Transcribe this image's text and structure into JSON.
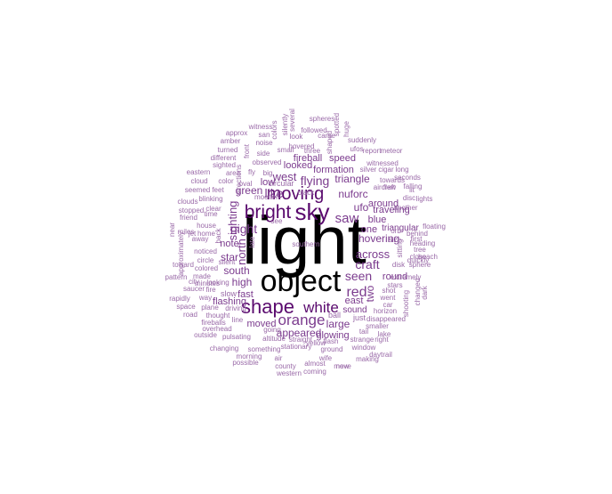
{
  "colors": {
    "black": "#000000",
    "dark": "#5a0a6e",
    "mid": "#7b3b8e",
    "light": "#9a6aa8"
  },
  "words": [
    {
      "text": "light",
      "c": "black"
    },
    {
      "text": "object",
      "c": "black"
    },
    {
      "text": "sky",
      "c": "dark"
    },
    {
      "text": "bright",
      "c": "dark"
    },
    {
      "text": "moving",
      "c": "dark"
    },
    {
      "text": "shape",
      "c": "dark"
    },
    {
      "text": "white",
      "c": "dark"
    },
    {
      "text": "orange",
      "c": "mid"
    },
    {
      "text": "red",
      "c": "mid"
    },
    {
      "text": "seen",
      "c": "mid"
    },
    {
      "text": "saw",
      "c": "mid"
    },
    {
      "text": "flying",
      "c": "mid"
    },
    {
      "text": "like",
      "c": "mid"
    },
    {
      "text": "craft",
      "c": "mid"
    },
    {
      "text": "across",
      "c": "mid"
    },
    {
      "text": "west",
      "c": "mid"
    },
    {
      "text": "night",
      "c": "mid"
    },
    {
      "text": "nuforc",
      "c": "mid"
    },
    {
      "text": "triangle",
      "c": "mid"
    },
    {
      "text": "ufo",
      "c": "mid"
    },
    {
      "text": "around",
      "c": "mid"
    },
    {
      "text": "hovering",
      "c": "mid"
    },
    {
      "text": "blue",
      "c": "mid"
    },
    {
      "text": "one",
      "c": "mid"
    },
    {
      "text": "green",
      "c": "mid"
    },
    {
      "text": "sighting",
      "c": "mid"
    },
    {
      "text": "north",
      "c": "mid"
    },
    {
      "text": "star",
      "c": "mid"
    },
    {
      "text": "south",
      "c": "mid"
    },
    {
      "text": "high",
      "c": "mid"
    },
    {
      "text": "fast",
      "c": "mid"
    },
    {
      "text": "flashing",
      "c": "mid"
    },
    {
      "text": "appeared",
      "c": "mid"
    },
    {
      "text": "large",
      "c": "mid"
    },
    {
      "text": "east",
      "c": "mid"
    },
    {
      "text": "two",
      "c": "mid"
    },
    {
      "text": "glowing",
      "c": "mid"
    },
    {
      "text": "moved",
      "c": "mid"
    },
    {
      "text": "formation",
      "c": "mid"
    },
    {
      "text": "looked",
      "c": "mid"
    },
    {
      "text": "speed",
      "c": "mid"
    },
    {
      "text": "fireball",
      "c": "mid"
    },
    {
      "text": "note",
      "c": "mid"
    },
    {
      "text": "traveling",
      "c": "mid"
    },
    {
      "text": "triangular",
      "c": "mid"
    },
    {
      "text": "round",
      "c": "mid"
    },
    {
      "text": "sound",
      "c": "mid"
    },
    {
      "text": "low",
      "c": "mid"
    },
    {
      "text": "circular",
      "c": "light"
    },
    {
      "text": "slow",
      "c": "light"
    },
    {
      "text": "ball",
      "c": "light"
    },
    {
      "text": "just",
      "c": "light"
    },
    {
      "text": "stars",
      "c": "light"
    },
    {
      "text": "flew",
      "c": "light"
    },
    {
      "text": "aircraft",
      "c": "light"
    },
    {
      "text": "disc",
      "c": "light"
    },
    {
      "text": "falling",
      "c": "light"
    },
    {
      "text": "towards",
      "c": "light"
    },
    {
      "text": "witnessed",
      "c": "light"
    },
    {
      "text": "silver",
      "c": "light"
    },
    {
      "text": "cigar",
      "c": "light"
    },
    {
      "text": "long",
      "c": "light"
    },
    {
      "text": "report",
      "c": "light"
    },
    {
      "text": "meteor",
      "c": "light"
    },
    {
      "text": "ufos",
      "c": "light"
    },
    {
      "text": "suddenly",
      "c": "light"
    },
    {
      "text": "spheres",
      "c": "light"
    },
    {
      "text": "followed",
      "c": "light"
    },
    {
      "text": "came",
      "c": "light"
    },
    {
      "text": "look",
      "c": "light"
    },
    {
      "text": "hovered",
      "c": "light"
    },
    {
      "text": "three",
      "c": "light"
    },
    {
      "text": "small",
      "c": "light"
    },
    {
      "text": "side",
      "c": "light"
    },
    {
      "text": "noise",
      "c": "light"
    },
    {
      "text": "san",
      "c": "light"
    },
    {
      "text": "approx",
      "c": "light"
    },
    {
      "text": "witness",
      "c": "light"
    },
    {
      "text": "amber",
      "c": "light"
    },
    {
      "text": "turned",
      "c": "light"
    },
    {
      "text": "different",
      "c": "light"
    },
    {
      "text": "sighted",
      "c": "light"
    },
    {
      "text": "observed",
      "c": "light"
    },
    {
      "text": "area",
      "c": "light"
    },
    {
      "text": "big",
      "c": "light"
    },
    {
      "text": "eastern",
      "c": "light"
    },
    {
      "text": "cloud",
      "c": "light"
    },
    {
      "text": "color",
      "c": "light"
    },
    {
      "text": "oval",
      "c": "light"
    },
    {
      "text": "seemed",
      "c": "light"
    },
    {
      "text": "feet",
      "c": "light"
    },
    {
      "text": "clouds",
      "c": "light"
    },
    {
      "text": "stopped",
      "c": "light"
    },
    {
      "text": "friend",
      "c": "light"
    },
    {
      "text": "blinking",
      "c": "light"
    },
    {
      "text": "clear",
      "c": "light"
    },
    {
      "text": "time",
      "c": "light"
    },
    {
      "text": "house",
      "c": "light"
    },
    {
      "text": "home",
      "c": "light"
    },
    {
      "text": "away",
      "c": "light"
    },
    {
      "text": "jet",
      "c": "light"
    },
    {
      "text": "miles",
      "c": "light"
    },
    {
      "text": "toward",
      "c": "light"
    },
    {
      "text": "circle",
      "c": "light"
    },
    {
      "text": "silent",
      "c": "light"
    },
    {
      "text": "noticed",
      "c": "light"
    },
    {
      "text": "pattern",
      "c": "light"
    },
    {
      "text": "city",
      "c": "light"
    },
    {
      "text": "made",
      "c": "light"
    },
    {
      "text": "colored",
      "c": "light"
    },
    {
      "text": "minutes",
      "c": "light"
    },
    {
      "text": "looking",
      "c": "light"
    },
    {
      "text": "saucer",
      "c": "light"
    },
    {
      "text": "fire",
      "c": "light"
    },
    {
      "text": "rapidly",
      "c": "light"
    },
    {
      "text": "way",
      "c": "light"
    },
    {
      "text": "space",
      "c": "light"
    },
    {
      "text": "plane",
      "c": "light"
    },
    {
      "text": "driving",
      "c": "light"
    },
    {
      "text": "road",
      "c": "light"
    },
    {
      "text": "thought",
      "c": "light"
    },
    {
      "text": "fireballs",
      "c": "light"
    },
    {
      "text": "line",
      "c": "light"
    },
    {
      "text": "overhead",
      "c": "light"
    },
    {
      "text": "outside",
      "c": "light"
    },
    {
      "text": "pulsating",
      "c": "light"
    },
    {
      "text": "changing",
      "c": "light"
    },
    {
      "text": "something",
      "c": "light"
    },
    {
      "text": "altitude",
      "c": "light"
    },
    {
      "text": "going",
      "c": "light"
    },
    {
      "text": "air",
      "c": "light"
    },
    {
      "text": "possible",
      "c": "light"
    },
    {
      "text": "morning",
      "c": "light"
    },
    {
      "text": "county",
      "c": "light"
    },
    {
      "text": "western",
      "c": "light"
    },
    {
      "text": "almost",
      "c": "light"
    },
    {
      "text": "coming",
      "c": "light"
    },
    {
      "text": "wife",
      "c": "light"
    },
    {
      "text": "move",
      "c": "light"
    },
    {
      "text": "new",
      "c": "light"
    },
    {
      "text": "making",
      "c": "light"
    },
    {
      "text": "daytrail",
      "c": "light"
    },
    {
      "text": "window",
      "c": "light"
    },
    {
      "text": "ground",
      "c": "light"
    },
    {
      "text": "stationary",
      "c": "light"
    },
    {
      "text": "straight",
      "c": "light"
    },
    {
      "text": "flash",
      "c": "light"
    },
    {
      "text": "yellow",
      "c": "light"
    },
    {
      "text": "tail",
      "c": "light"
    },
    {
      "text": "strange",
      "c": "light"
    },
    {
      "text": "right",
      "c": "light"
    },
    {
      "text": "smaller",
      "c": "light"
    },
    {
      "text": "disappeared",
      "c": "light"
    },
    {
      "text": "horizon",
      "c": "light"
    },
    {
      "text": "lake",
      "c": "light"
    },
    {
      "text": "shot",
      "c": "light"
    },
    {
      "text": "went",
      "c": "light"
    },
    {
      "text": "car",
      "c": "light"
    },
    {
      "text": "disk",
      "c": "light"
    },
    {
      "text": "sphere",
      "c": "light"
    },
    {
      "text": "size",
      "c": "light"
    },
    {
      "text": "first",
      "c": "light"
    },
    {
      "text": "quickly",
      "c": "light"
    },
    {
      "text": "heading",
      "c": "light"
    },
    {
      "text": "tree",
      "c": "light"
    },
    {
      "text": "close",
      "c": "light"
    },
    {
      "text": "beach",
      "c": "light"
    },
    {
      "text": "behind",
      "c": "light"
    },
    {
      "text": "floating",
      "c": "light"
    },
    {
      "text": "sitting",
      "c": "light"
    },
    {
      "text": "orb",
      "c": "light"
    },
    {
      "text": "lit",
      "c": "light"
    },
    {
      "text": "seconds",
      "c": "light"
    },
    {
      "text": "lights",
      "c": "light"
    },
    {
      "text": "another",
      "c": "light"
    },
    {
      "text": "shaped",
      "c": "light"
    },
    {
      "text": "spotted",
      "c": "light"
    },
    {
      "text": "huge",
      "c": "light"
    },
    {
      "text": "several",
      "c": "light"
    },
    {
      "text": "silently",
      "c": "light"
    },
    {
      "text": "colors",
      "c": "light"
    },
    {
      "text": "front",
      "c": "light"
    },
    {
      "text": "directions",
      "c": "light"
    },
    {
      "text": "moon",
      "c": "light"
    },
    {
      "text": "left",
      "c": "light"
    },
    {
      "text": "black",
      "c": "light"
    },
    {
      "text": "see",
      "c": "light"
    },
    {
      "text": "late",
      "c": "light"
    },
    {
      "text": "fly",
      "c": "light"
    },
    {
      "text": "back",
      "c": "light"
    },
    {
      "text": "near",
      "c": "light"
    },
    {
      "text": "approximately",
      "c": "light"
    },
    {
      "text": "shooting",
      "c": "light"
    },
    {
      "text": "changed",
      "c": "light"
    },
    {
      "text": "extremely",
      "c": "light"
    },
    {
      "text": "dark",
      "c": "light"
    },
    {
      "text": "southern",
      "c": "light"
    }
  ]
}
